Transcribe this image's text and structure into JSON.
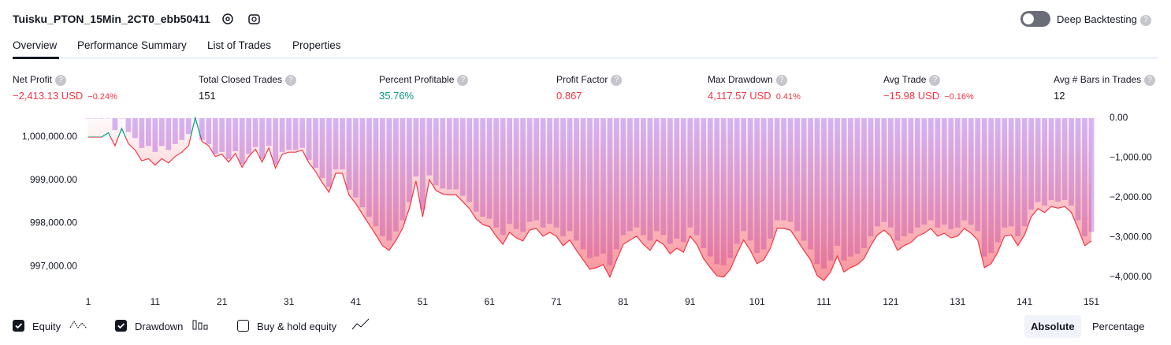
{
  "header": {
    "title": "Tuisku_PTON_15Min_2CT0_ebb50411",
    "deep": "Deep Backtesting"
  },
  "tabs": [
    "Overview",
    "Performance Summary",
    "List of Trades",
    "Properties"
  ],
  "metrics": [
    {
      "label": "Net Profit",
      "value": "−2,413.13 USD",
      "pct": "−0.24%"
    },
    {
      "label": "Total Closed Trades",
      "value": "151"
    },
    {
      "label": "Percent Profitable",
      "value": "35.76%"
    },
    {
      "label": "Profit Factor",
      "value": "0.867"
    },
    {
      "label": "Max Drawdown",
      "value": "4,117.57 USD",
      "pct": "0.41%"
    },
    {
      "label": "Avg Trade",
      "value": "−15.98 USD",
      "pct": "−0.16%"
    },
    {
      "label": "Avg # Bars in Trades",
      "value": "12"
    }
  ],
  "options": {
    "buy_hold": "Buy & hold equity",
    "modes": [
      "Absolute",
      "Percentage"
    ]
  },
  "chart_data": {
    "type": "line",
    "colors_equity": [
      "#089981",
      "#f23645"
    ],
    "x": [
      1,
      2,
      3,
      4,
      5,
      6,
      7,
      8,
      9,
      10,
      11,
      12,
      13,
      14,
      15,
      16,
      17,
      18,
      19,
      20,
      21,
      22,
      23,
      24,
      25,
      26,
      27,
      28,
      29,
      30,
      31,
      32,
      33,
      34,
      35,
      36,
      37,
      38,
      39,
      40,
      41,
      42,
      43,
      44,
      45,
      46,
      47,
      48,
      49,
      50,
      51,
      52,
      53,
      54,
      55,
      56,
      57,
      58,
      59,
      60,
      61,
      62,
      63,
      64,
      65,
      66,
      67,
      68,
      69,
      70,
      71,
      72,
      73,
      74,
      75,
      76,
      77,
      78,
      79,
      80,
      81,
      82,
      83,
      84,
      85,
      86,
      87,
      88,
      89,
      90,
      91,
      92,
      93,
      94,
      95,
      96,
      97,
      98,
      99,
      100,
      101,
      102,
      103,
      104,
      105,
      106,
      107,
      108,
      109,
      110,
      111,
      112,
      113,
      114,
      115,
      116,
      117,
      118,
      119,
      120,
      121,
      122,
      123,
      124,
      125,
      126,
      127,
      128,
      129,
      130,
      131,
      132,
      133,
      134,
      135,
      136,
      137,
      138,
      139,
      140,
      141,
      142,
      143,
      144,
      145,
      146,
      147,
      148,
      149,
      150,
      151
    ],
    "series": [
      {
        "name": "Equity",
        "color": "#f23645",
        "values": [
          1000000,
          1000000,
          1000000,
          1000100,
          999800,
          1000200,
          999850,
          999700,
          999450,
          999500,
          999350,
          999500,
          999400,
          999550,
          999650,
          999800,
          1000450,
          999900,
          999800,
          999550,
          999600,
          999420,
          999620,
          999300,
          999550,
          999720,
          999420,
          999750,
          999280,
          999600,
          999650,
          999650,
          999700,
          999400,
          999200,
          998940,
          998720,
          999160,
          999160,
          998650,
          998460,
          998210,
          997970,
          997730,
          997480,
          997370,
          997600,
          997880,
          998340,
          998980,
          998150,
          999010,
          998760,
          998680,
          998660,
          998660,
          998500,
          998340,
          998100,
          997970,
          997920,
          997700,
          997510,
          997790,
          997660,
          997590,
          997840,
          997880,
          997700,
          997790,
          997700,
          997480,
          997610,
          997370,
          997150,
          996930,
          996970,
          997040,
          996750,
          997150,
          997510,
          997610,
          997700,
          997510,
          997370,
          997610,
          997510,
          997290,
          997420,
          997330,
          997700,
          997510,
          997180,
          996970,
          996780,
          996750,
          996930,
          997290,
          997610,
          997370,
          997060,
          997150,
          997420,
          997880,
          997880,
          997840,
          997610,
          997370,
          997150,
          996780,
          996670,
          996870,
          997240,
          996870,
          996970,
          997040,
          997180,
          997480,
          997730,
          997840,
          997700,
          997370,
          997480,
          997550,
          997700,
          997770,
          997880,
          997700,
          997770,
          997660,
          997700,
          997880,
          997770,
          997610,
          996970,
          997060,
          997330,
          997700,
          997730,
          997480,
          997730,
          998150,
          998340,
          998250,
          998390,
          998350,
          998390,
          998250,
          997880,
          997480,
          997587
        ]
      },
      {
        "name": "Drawdown",
        "color": "#d5b6f6",
        "axis": "y2",
        "values": [
          0,
          0,
          0,
          0,
          -300,
          0,
          -350,
          -500,
          -750,
          -700,
          -850,
          -700,
          -800,
          -650,
          -550,
          -400,
          0,
          -550,
          -650,
          -900,
          -850,
          -1030,
          -830,
          -1150,
          -900,
          -730,
          -1030,
          -700,
          -1170,
          -850,
          -800,
          -800,
          -750,
          -1050,
          -1250,
          -1510,
          -1730,
          -1290,
          -1290,
          -1800,
          -1990,
          -2240,
          -2480,
          -2720,
          -2970,
          -3080,
          -2850,
          -2570,
          -2110,
          -1470,
          -2300,
          -1440,
          -1690,
          -1770,
          -1790,
          -1790,
          -1950,
          -2110,
          -2350,
          -2480,
          -2530,
          -2750,
          -2940,
          -2660,
          -2790,
          -2860,
          -2610,
          -2570,
          -2750,
          -2660,
          -2750,
          -2970,
          -2840,
          -3080,
          -3300,
          -3520,
          -3480,
          -3410,
          -3700,
          -3300,
          -2940,
          -2840,
          -2750,
          -2940,
          -3080,
          -2840,
          -2940,
          -3160,
          -3030,
          -3120,
          -2750,
          -2940,
          -3270,
          -3480,
          -3670,
          -3700,
          -3520,
          -3160,
          -2840,
          -3080,
          -3390,
          -3300,
          -3030,
          -2570,
          -2570,
          -2610,
          -2840,
          -3080,
          -3300,
          -3670,
          -3780,
          -3580,
          -3210,
          -3580,
          -3480,
          -3410,
          -3270,
          -2970,
          -2720,
          -2610,
          -2750,
          -3080,
          -2970,
          -2900,
          -2750,
          -2680,
          -2570,
          -2750,
          -2680,
          -2790,
          -2750,
          -2570,
          -2680,
          -2840,
          -3480,
          -3390,
          -3120,
          -2750,
          -2720,
          -2970,
          -2720,
          -2300,
          -2110,
          -2200,
          -2060,
          -2100,
          -2060,
          -2200,
          -2570,
          -2970,
          -2863
        ]
      }
    ],
    "xlim": [
      1,
      151
    ],
    "xticks": [
      1,
      11,
      21,
      31,
      41,
      51,
      61,
      71,
      81,
      91,
      101,
      111,
      121,
      131,
      141,
      151
    ],
    "ylim": [
      996600,
      1000440
    ],
    "yticks": [
      {
        "value": 1000000,
        "label": "1,000,000.00"
      },
      {
        "value": 999000,
        "label": "999,000.00"
      },
      {
        "value": 998000,
        "label": "998,000.00"
      },
      {
        "value": 997000,
        "label": "997,000.00"
      }
    ],
    "y2lim": [
      -4160,
      0
    ],
    "y2ticks": [
      {
        "value": 0,
        "label": "0.00"
      },
      {
        "value": -1000,
        "label": "−1,000.00"
      },
      {
        "value": -2000,
        "label": "−2,000.00"
      },
      {
        "value": -3000,
        "label": "−3,000.00"
      },
      {
        "value": -4000,
        "label": "−4,000.00"
      }
    ]
  }
}
